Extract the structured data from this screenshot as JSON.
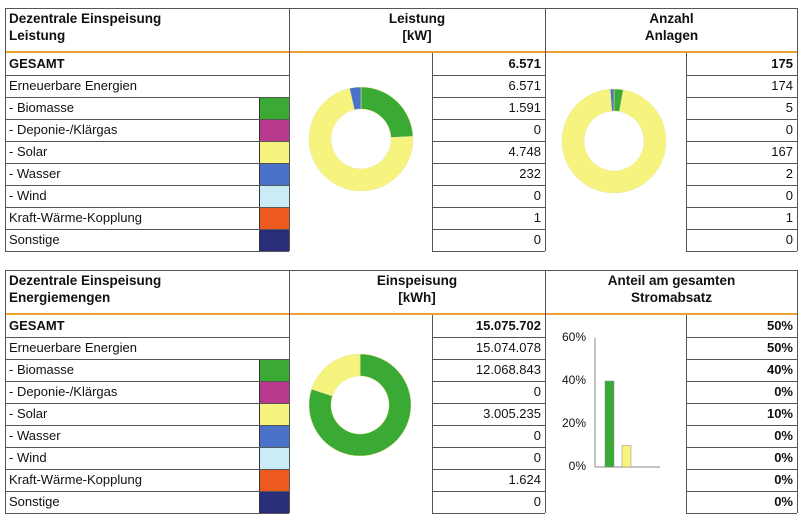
{
  "sections": [
    {
      "header_label": [
        "Dezentrale Einspeisung",
        "Leistung"
      ],
      "header_value": [
        "Leistung",
        "[kW]"
      ],
      "header_right": [
        "Anzahl",
        "Anlagen"
      ],
      "rows": [
        {
          "label": "GESAMT",
          "value": "6.571",
          "right": "175",
          "bold": true
        },
        {
          "label": "Erneuerbare Energien",
          "value": "6.571",
          "right": "174",
          "bold": false
        },
        {
          "label": "- Biomasse",
          "value": "1.591",
          "right": "5",
          "bold": false,
          "color": "#3aaa35"
        },
        {
          "label": "- Deponie-/Klärgas",
          "value": "0",
          "right": "0",
          "bold": false,
          "color": "#b83a8f"
        },
        {
          "label": "- Solar",
          "value": "4.748",
          "right": "167",
          "bold": false,
          "color": "#f6f47e"
        },
        {
          "label": "- Wasser",
          "value": "232",
          "right": "2",
          "bold": false,
          "color": "#4a72c8"
        },
        {
          "label": "- Wind",
          "value": "0",
          "right": "0",
          "bold": false,
          "color": "#c9ecf6"
        },
        {
          "label": "Kraft-Wärme-Kopplung",
          "value": "1",
          "right": "1",
          "bold": false,
          "color": "#ee5a1e"
        },
        {
          "label": "Sonstige",
          "value": "0",
          "right": "0",
          "bold": false,
          "color": "#2a2e7a"
        }
      ]
    },
    {
      "header_label": [
        "Dezentrale Einspeisung",
        "Energiemengen"
      ],
      "header_value": [
        "Einspeisung",
        "[kWh]"
      ],
      "header_right": [
        "Anteil am gesamten",
        "Stromabsatz"
      ],
      "rows": [
        {
          "label": "GESAMT",
          "value": "15.075.702",
          "right": "50%",
          "bold": true
        },
        {
          "label": "Erneuerbare Energien",
          "value": "15.074.078",
          "right": "50%",
          "bold": false
        },
        {
          "label": "- Biomasse",
          "value": "12.068.843",
          "right": "40%",
          "bold": false,
          "color": "#3aaa35"
        },
        {
          "label": "- Deponie-/Klärgas",
          "value": "0",
          "right": "0%",
          "bold": false,
          "color": "#b83a8f"
        },
        {
          "label": "- Solar",
          "value": "3.005.235",
          "right": "10%",
          "bold": false,
          "color": "#f6f47e"
        },
        {
          "label": "- Wasser",
          "value": "0",
          "right": "0%",
          "bold": false,
          "color": "#4a72c8"
        },
        {
          "label": "- Wind",
          "value": "0",
          "right": "0%",
          "bold": false,
          "color": "#c9ecf6"
        },
        {
          "label": "Kraft-Wärme-Kopplung",
          "value": "1.624",
          "right": "0%",
          "bold": false,
          "color": "#ee5a1e"
        },
        {
          "label": "Sonstige",
          "value": "0",
          "right": "0%",
          "bold": false,
          "color": "#2a2e7a"
        }
      ]
    }
  ],
  "chart_data": [
    {
      "type": "pie",
      "categories": [
        "Biomasse",
        "Solar",
        "Wasser"
      ],
      "values": [
        1591,
        4748,
        232
      ],
      "colors": [
        "#3aaa35",
        "#f6f47e",
        "#4a72c8"
      ]
    },
    {
      "type": "pie",
      "categories": [
        "Biomasse",
        "Solar",
        "Wasser"
      ],
      "values": [
        5,
        167,
        2
      ],
      "colors": [
        "#3aaa35",
        "#f6f47e",
        "#4a72c8"
      ]
    },
    {
      "type": "pie",
      "categories": [
        "Biomasse",
        "Solar",
        "Kraft-Wärme-Kopplung"
      ],
      "values": [
        12068843,
        3005235,
        1624
      ],
      "colors": [
        "#3aaa35",
        "#f6f47e",
        "#ee5a1e"
      ]
    },
    {
      "type": "bar",
      "categories": [
        "Biomasse",
        "Solar"
      ],
      "values": [
        40,
        10
      ],
      "colors": [
        "#3aaa35",
        "#f6f47e"
      ],
      "ylim": [
        0,
        60
      ],
      "yticks": [
        "0%",
        "20%",
        "40%",
        "60%"
      ],
      "grid": false
    }
  ]
}
